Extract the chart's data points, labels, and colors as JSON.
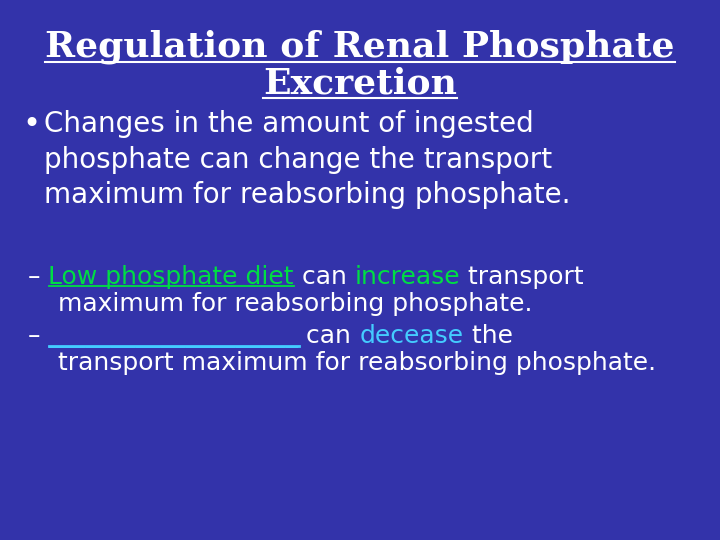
{
  "background_color": "#3333AA",
  "title_line1": "Regulation of Renal Phosphate",
  "title_line2": "Excretion",
  "title_color": "#FFFFFF",
  "title_fontsize": 26,
  "bullet_color": "#FFFFFF",
  "bullet_fontsize": 20,
  "sub1_prefix": "– ",
  "sub1_part1": "Low phosphate diet",
  "sub1_part1_color": "#00DD44",
  "sub1_part2": " can ",
  "sub1_part3": "increase",
  "sub1_part3_color": "#00DD44",
  "sub1_part4": " transport",
  "sub1_line2": "  maximum for reabsorbing phosphate.",
  "sub1_fontsize": 18,
  "sub2_prefix": "– ",
  "sub2_blank": "____________________",
  "sub2_blank_color": "#44CCFF",
  "sub2_part2": " can ",
  "sub2_part3": "decease",
  "sub2_part3_color": "#44CCFF",
  "sub2_part4": " the",
  "sub2_line2": "  transport maximum for reabsorbing phosphate.",
  "sub2_fontsize": 18
}
